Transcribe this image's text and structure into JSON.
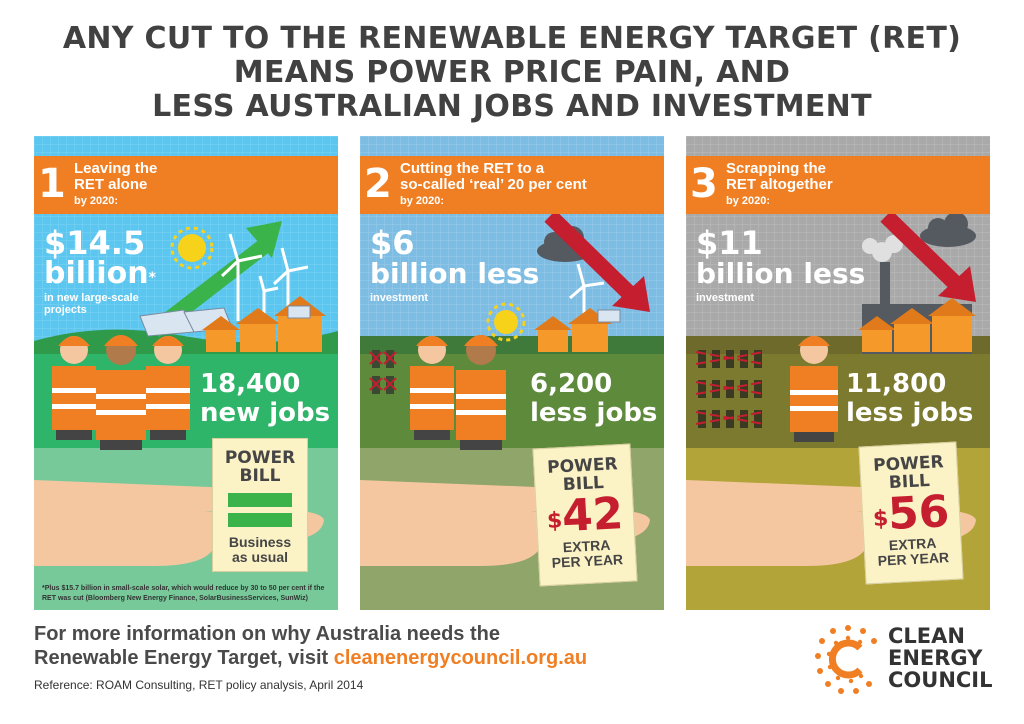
{
  "headline": [
    "ANY CUT TO THE RENEWABLE ENERGY TARGET (RET)",
    "MEANS POWER PRICE PAIN, AND",
    "LESS AUSTRALIAN JOBS AND INVESTMENT"
  ],
  "scenarios": [
    {
      "number": "1",
      "title_line1": "Leaving the",
      "title_line2": "RET alone",
      "by": "by 2020:",
      "investment_value": "$14.5",
      "investment_unit": "billion",
      "investment_mark": "*",
      "investment_desc_1": "in new large-scale",
      "investment_desc_2": "projects",
      "jobs_value": "18,400",
      "jobs_label": "new jobs",
      "bill_title_1": "POWER",
      "bill_title_2": "BILL",
      "bill_note_1": "Business",
      "bill_note_2": "as usual",
      "footnote": "*Plus $15.7 billion in small-scale solar, which would reduce by 30 to 50 per cent if the RET was cut (Bloomberg New Energy Finance, SolarBusinessServices, SunWiz)"
    },
    {
      "number": "2",
      "title_line1": "Cutting the RET to a",
      "title_line2": "so-called ‘real’ 20 per cent",
      "by": "by 2020:",
      "investment_value": "$6",
      "investment_unit": "billion less",
      "investment_desc_1": "investment",
      "jobs_value": "6,200",
      "jobs_label": "less jobs",
      "bill_title_1": "POWER",
      "bill_title_2": "BILL",
      "bill_currency": "$",
      "bill_amount": "42",
      "bill_extra_1": "EXTRA",
      "bill_extra_2": "PER YEAR"
    },
    {
      "number": "3",
      "title_line1": "Scrapping the",
      "title_line2": "RET altogether",
      "by": "by 2020:",
      "investment_value": "$11",
      "investment_unit": "billion less",
      "investment_desc_1": "investment",
      "jobs_value": "11,800",
      "jobs_label": "less jobs",
      "bill_title_1": "POWER",
      "bill_title_2": "BILL",
      "bill_currency": "$",
      "bill_amount": "56",
      "bill_extra_1": "EXTRA",
      "bill_extra_2": "PER YEAR"
    }
  ],
  "footer": {
    "more_info_line1": "For more information on why Australia needs the",
    "more_info_line2_prefix": "Renewable Energy Target, visit ",
    "url": "cleanenergycouncil.org.au",
    "reference": "Reference: ROAM Consulting, RET policy analysis, April 2014"
  },
  "logo": {
    "line1": "CLEAN",
    "line2": "ENERGY",
    "line3": "COUNCIL"
  },
  "colors": {
    "orange": "#f07f24",
    "red_amount": "#c41e2f",
    "green_equal": "#3ab44a",
    "panel1_sky": "#5bc6ef",
    "panel2_sky": "#7dbde4",
    "panel3_sky": "#a9a9a9"
  }
}
